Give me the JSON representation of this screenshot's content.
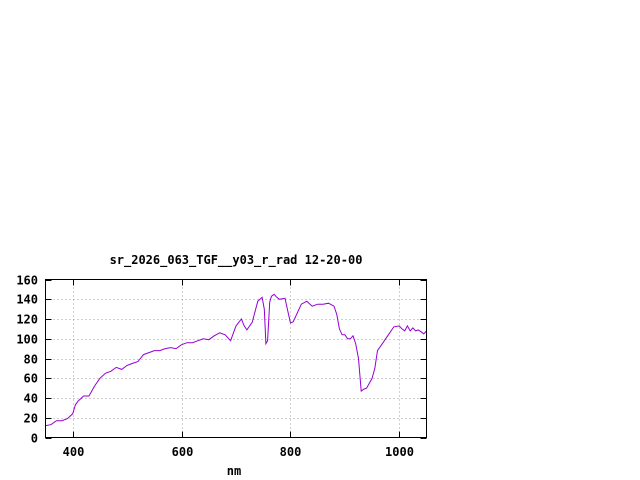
{
  "chart_data": {
    "type": "line",
    "title": "sr_2026_063_TGF__y03_r_rad 12-20-00",
    "xlabel": "nm",
    "ylabel": "",
    "xlim": [
      350,
      1050
    ],
    "ylim": [
      0,
      160
    ],
    "xticks": [
      400,
      600,
      800,
      1000
    ],
    "yticks": [
      0,
      20,
      40,
      60,
      80,
      100,
      120,
      140,
      160
    ],
    "grid": true,
    "series": [
      {
        "color": "#9400d3",
        "x": [
          350,
          360,
          370,
          380,
          390,
          400,
          405,
          410,
          420,
          430,
          440,
          450,
          460,
          470,
          480,
          490,
          500,
          510,
          520,
          530,
          540,
          550,
          560,
          570,
          580,
          590,
          600,
          610,
          620,
          630,
          640,
          650,
          660,
          670,
          680,
          690,
          700,
          710,
          715,
          720,
          730,
          740,
          748,
          752,
          755,
          758,
          762,
          765,
          770,
          775,
          780,
          790,
          800,
          805,
          810,
          815,
          820,
          830,
          840,
          845,
          850,
          860,
          870,
          880,
          885,
          890,
          895,
          900,
          905,
          910,
          915,
          920,
          925,
          930,
          935,
          940,
          950,
          955,
          960,
          970,
          980,
          990,
          1000,
          1005,
          1010,
          1015,
          1020,
          1025,
          1030,
          1035,
          1040,
          1045,
          1050
        ],
        "y": [
          12,
          13,
          17,
          17,
          19,
          24,
          33,
          37,
          42,
          42,
          52,
          60,
          65,
          67,
          71,
          69,
          73,
          75,
          77,
          84,
          86,
          88,
          88,
          90,
          91,
          90,
          94,
          96,
          96,
          98,
          100,
          99,
          103,
          106,
          104,
          98,
          113,
          120,
          113,
          109,
          117,
          138,
          142,
          130,
          95,
          98,
          137,
          143,
          145,
          142,
          140,
          141,
          116,
          117,
          123,
          129,
          135,
          138,
          133,
          134,
          135,
          135,
          136,
          133,
          125,
          110,
          104,
          104,
          100,
          100,
          103,
          95,
          80,
          47,
          49,
          50,
          60,
          70,
          88,
          96,
          104,
          112,
          113,
          110,
          108,
          113,
          108,
          111,
          108,
          109,
          107,
          105,
          108
        ]
      }
    ]
  }
}
